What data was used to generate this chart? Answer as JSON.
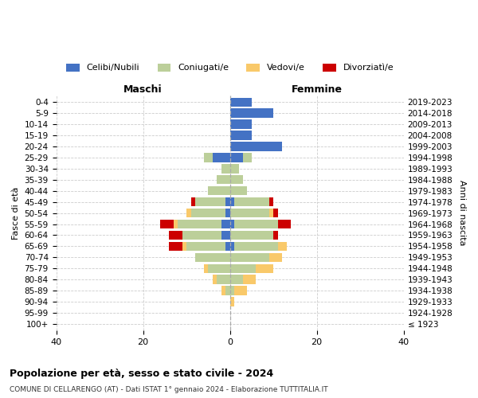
{
  "age_groups": [
    "100+",
    "95-99",
    "90-94",
    "85-89",
    "80-84",
    "75-79",
    "70-74",
    "65-69",
    "60-64",
    "55-59",
    "50-54",
    "45-49",
    "40-44",
    "35-39",
    "30-34",
    "25-29",
    "20-24",
    "15-19",
    "10-14",
    "5-9",
    "0-4"
  ],
  "birth_years": [
    "≤ 1923",
    "1924-1928",
    "1929-1933",
    "1934-1938",
    "1939-1943",
    "1944-1948",
    "1949-1953",
    "1954-1958",
    "1959-1963",
    "1964-1968",
    "1969-1973",
    "1974-1978",
    "1979-1983",
    "1984-1988",
    "1989-1993",
    "1994-1998",
    "1999-2003",
    "2004-2008",
    "2009-2013",
    "2014-2018",
    "2019-2023"
  ],
  "male_celibi": [
    0,
    0,
    0,
    0,
    0,
    0,
    0,
    1,
    2,
    2,
    1,
    1,
    0,
    0,
    0,
    4,
    0,
    0,
    0,
    0,
    0
  ],
  "male_coniugati": [
    0,
    0,
    0,
    1,
    3,
    5,
    8,
    9,
    9,
    10,
    8,
    7,
    5,
    3,
    2,
    2,
    0,
    0,
    0,
    0,
    0
  ],
  "male_vedovi": [
    0,
    0,
    0,
    1,
    1,
    1,
    0,
    1,
    0,
    1,
    1,
    0,
    0,
    0,
    0,
    0,
    0,
    0,
    0,
    0,
    0
  ],
  "male_divorziati": [
    0,
    0,
    0,
    0,
    0,
    0,
    0,
    3,
    3,
    3,
    0,
    1,
    0,
    0,
    0,
    0,
    0,
    0,
    0,
    0,
    0
  ],
  "female_celibi": [
    0,
    0,
    0,
    0,
    0,
    0,
    0,
    1,
    0,
    1,
    0,
    1,
    0,
    0,
    0,
    3,
    12,
    5,
    5,
    10,
    5
  ],
  "female_coniugati": [
    0,
    0,
    0,
    1,
    3,
    6,
    9,
    10,
    10,
    10,
    9,
    8,
    4,
    3,
    2,
    2,
    0,
    0,
    0,
    0,
    0
  ],
  "female_vedovi": [
    0,
    0,
    1,
    3,
    3,
    4,
    3,
    2,
    0,
    0,
    1,
    0,
    0,
    0,
    0,
    0,
    0,
    0,
    0,
    0,
    0
  ],
  "female_divorziati": [
    0,
    0,
    0,
    0,
    0,
    0,
    0,
    0,
    1,
    3,
    1,
    1,
    0,
    0,
    0,
    0,
    0,
    0,
    0,
    0,
    0
  ],
  "color_celibi": "#4472C4",
  "color_coniugati": "#BCCF9A",
  "color_vedovi": "#F9C96A",
  "color_divorziati": "#CC0000",
  "legend_labels": [
    "Celibi/Nubili",
    "Coniugati/e",
    "Vedovi/e",
    "Divorziatì/e"
  ],
  "title": "Popolazione per età, sesso e stato civile - 2024",
  "subtitle": "COMUNE DI CELLARENGO (AT) - Dati ISTAT 1° gennaio 2024 - Elaborazione TUTTITALIA.IT",
  "xlabel_left": "Maschi",
  "xlabel_right": "Femmine",
  "ylabel_left": "Fasce di età",
  "ylabel_right": "Anni di nascita",
  "xlim": 40,
  "background_color": "#ffffff",
  "grid_color": "#cccccc"
}
